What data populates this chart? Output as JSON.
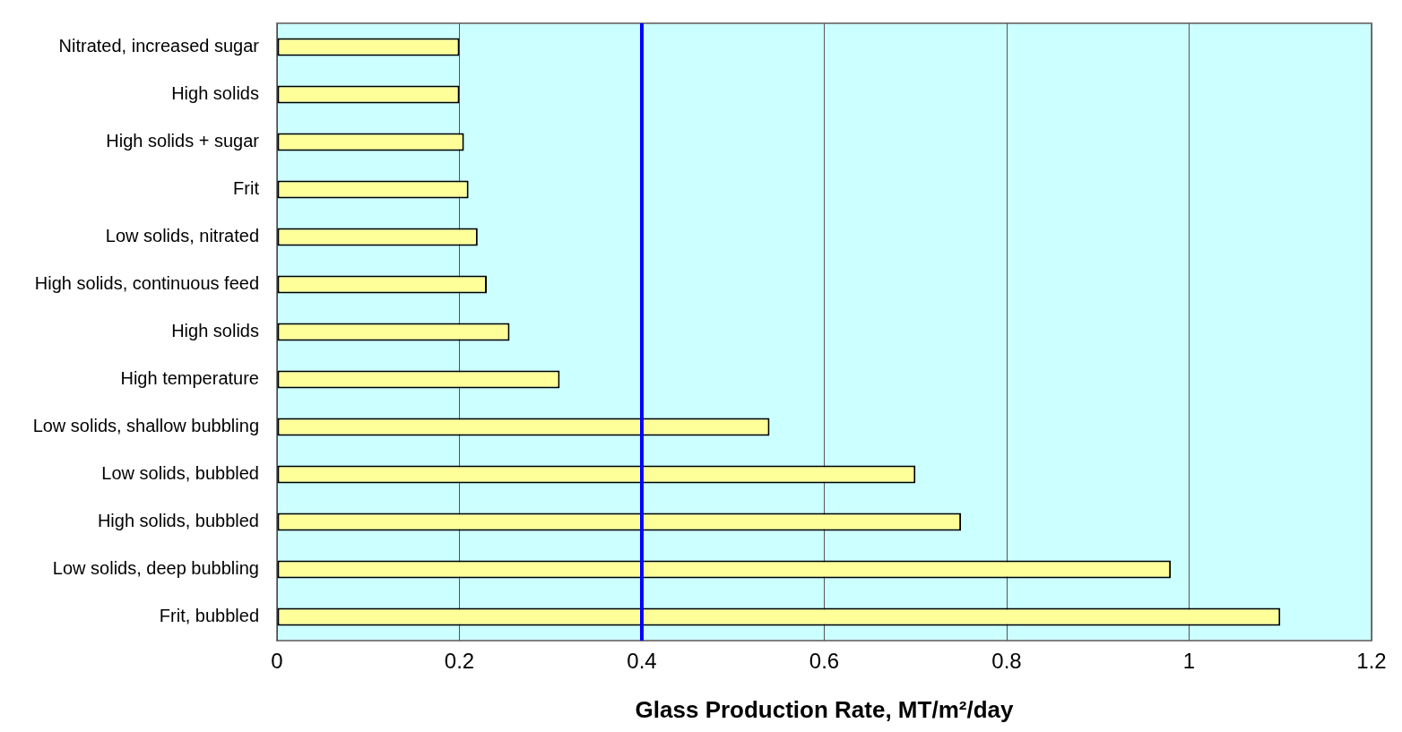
{
  "chart_data": {
    "type": "bar",
    "orientation": "horizontal",
    "xlabel": "Glass Production Rate, MT/m²/day",
    "categories": [
      "Nitrated, increased sugar",
      "High solids",
      "High solids + sugar",
      "Frit",
      "Low solids, nitrated",
      "High solids, continuous feed",
      "High solids",
      "High temperature",
      "Low solids, shallow bubbling",
      "Low solids, bubbled",
      "High solids, bubbled",
      "Low solids, deep bubbling",
      "Frit, bubbled"
    ],
    "values": [
      0.2,
      0.2,
      0.205,
      0.21,
      0.22,
      0.23,
      0.255,
      0.31,
      0.54,
      0.7,
      0.75,
      0.98,
      1.1
    ],
    "color": "#ffff99",
    "xlim": [
      0,
      1.2
    ],
    "xticks": [
      0,
      0.2,
      0.4,
      0.6,
      0.8,
      1,
      1.2
    ],
    "grid": "x",
    "ref_lines": [
      {
        "axis": "x",
        "value": 0.4,
        "color": "#0000ff"
      }
    ]
  }
}
